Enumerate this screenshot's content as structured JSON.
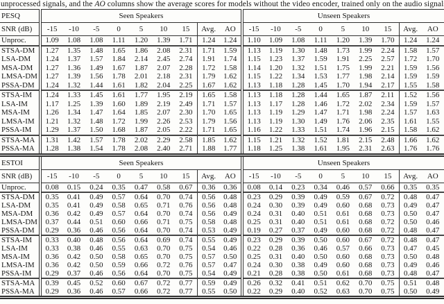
{
  "caption": {
    "prefix": "unprocessed signals, and the ",
    "italic": "AO",
    "suffix": " columns show the average scores for models without the video encoder, trained only on the audio signals."
  },
  "note": "cell values ending in * are rendered bold (best scores)",
  "groups": {
    "seen": "Seen Speakers",
    "unseen": "Unseen Speakers"
  },
  "columns": {
    "snr_label": "SNR (dB)",
    "snr_values": [
      "-15",
      "-10",
      "-5",
      "0",
      "5",
      "10",
      "15"
    ],
    "avg": "Avg.",
    "ao": "AO"
  },
  "tables": [
    {
      "metric": "PESQ",
      "rows": [
        {
          "label": "Unproc.",
          "baseline": true,
          "seen": [
            "1.09",
            "1.08",
            "1.08",
            "1.11",
            "1.20",
            "1.39",
            "1.71",
            "1.24",
            "1.24"
          ],
          "unseen": [
            "1.10",
            "1.09",
            "1.08",
            "1.11",
            "1.20",
            "1.39",
            "1.70",
            "1.24",
            "1.24"
          ]
        },
        {
          "label": "STSA-DM",
          "seen": [
            "1.27*",
            "1.35",
            "1.48",
            "1.65",
            "1.86",
            "2.08",
            "2.31",
            "1.71",
            "1.59"
          ],
          "unseen": [
            "1.13",
            "1.19",
            "1.30",
            "1.48",
            "1.73",
            "1.99",
            "2.24",
            "1.58",
            "1.57"
          ]
        },
        {
          "label": "LSA-DM",
          "seen": [
            "1.24",
            "1.37",
            "1.57*",
            "1.84*",
            "2.14*",
            "2.45*",
            "2.74*",
            "1.91*",
            "1.74*"
          ],
          "unseen": [
            "1.15*",
            "1.23*",
            "1.37*",
            "1.59*",
            "1.91*",
            "2.25*",
            "2.57*",
            "1.72*",
            "1.70*"
          ]
        },
        {
          "label": "MSA-DM",
          "seen": [
            "1.27*",
            "1.36",
            "1.49",
            "1.67",
            "1.87",
            "2.07",
            "2.28",
            "1.72",
            "1.58"
          ],
          "unseen": [
            "1.14",
            "1.20",
            "1.32",
            "1.51",
            "1.75",
            "1.99",
            "2.21",
            "1.59",
            "1.56"
          ]
        },
        {
          "label": "LMSA-DM",
          "seen": [
            "1.27*",
            "1.39*",
            "1.56",
            "1.78",
            "2.01",
            "2.18",
            "2.31",
            "1.79",
            "1.62"
          ],
          "unseen": [
            "1.15*",
            "1.22",
            "1.34",
            "1.53",
            "1.77",
            "1.98",
            "2.14",
            "1.59",
            "1.59"
          ]
        },
        {
          "label": "PSSA-DM",
          "seen": [
            "1.24",
            "1.32",
            "1.44",
            "1.61",
            "1.82",
            "2.04",
            "2.25",
            "1.67",
            "1.62"
          ],
          "unseen": [
            "1.13",
            "1.18",
            "1.28",
            "1.45",
            "1.70",
            "1.94",
            "2.17",
            "1.55",
            "1.58"
          ]
        },
        {
          "label": "STSA-IM",
          "sec_break": true,
          "seen": [
            "1.24",
            "1.33",
            "1.45",
            "1.61",
            "1.77",
            "1.95",
            "2.19",
            "1.65",
            "1.58"
          ],
          "unseen": [
            "1.13",
            "1.18",
            "1.28",
            "1.44",
            "1.65",
            "1.87",
            "2.11",
            "1.52",
            "1.56"
          ]
        },
        {
          "label": "LSA-IM",
          "seen": [
            "1.17",
            "1.25",
            "1.39",
            "1.60",
            "1.89",
            "2.19",
            "2.49",
            "1.71",
            "1.57"
          ],
          "unseen": [
            "1.13",
            "1.17",
            "1.28",
            "1.46",
            "1.72",
            "2.02",
            "2.34",
            "1.59",
            "1.57"
          ]
        },
        {
          "label": "MSA-IM",
          "seen": [
            "1.26",
            "1.34",
            "1.47",
            "1.64",
            "1.85",
            "2.07",
            "2.30",
            "1.70",
            "1.65*"
          ],
          "unseen": [
            "1.13",
            "1.19",
            "1.29",
            "1.47",
            "1.71",
            "1.98",
            "2.24",
            "1.57",
            "1.63*"
          ]
        },
        {
          "label": "LMSA-IM",
          "seen": [
            "1.21",
            "1.32",
            "1.48",
            "1.72*",
            "1.99*",
            "2.26*",
            "2.53*",
            "1.79*",
            "1.56"
          ],
          "unseen": [
            "1.13",
            "1.19",
            "1.30",
            "1.49",
            "1.76*",
            "2.06*",
            "2.35*",
            "1.61*",
            "1.55"
          ]
        },
        {
          "label": "PSSA-IM",
          "seen": [
            "1.29*",
            "1.37*",
            "1.50*",
            "1.68",
            "1.87",
            "2.05",
            "2.22",
            "1.71",
            "1.65*"
          ],
          "unseen": [
            "1.16*",
            "1.22*",
            "1.33*",
            "1.51*",
            "1.74",
            "1.96",
            "2.15",
            "1.58",
            "1.62"
          ]
        },
        {
          "label": "STSA-MA",
          "sec_break": true,
          "seen": [
            "1.31*",
            "1.42*",
            "1.57*",
            "1.78*",
            "2.02",
            "2.29",
            "2.58",
            "1.85",
            "1.62"
          ],
          "unseen": [
            "1.15",
            "1.21",
            "1.32",
            "1.52",
            "1.81",
            "2.15",
            "2.48",
            "1.66",
            "1.62"
          ]
        },
        {
          "label": "PSSA-MA",
          "seen": [
            "1.28",
            "1.38",
            "1.54",
            "1.78*",
            "2.08*",
            "2.40*",
            "2.71*",
            "1.88*",
            "1.77*"
          ],
          "unseen": [
            "1.18*",
            "1.25*",
            "1.38*",
            "1.61*",
            "1.95*",
            "2.31*",
            "2.63*",
            "1.76*",
            "1.76*"
          ]
        }
      ]
    },
    {
      "metric": "ESTOI",
      "rows": [
        {
          "label": "Unproc.",
          "baseline": true,
          "seen": [
            "0.08",
            "0.15",
            "0.24",
            "0.35",
            "0.47",
            "0.58",
            "0.67",
            "0.36",
            "0.36"
          ],
          "unseen": [
            "0.08",
            "0.14",
            "0.23",
            "0.34",
            "0.46",
            "0.57",
            "0.66",
            "0.35",
            "0.35"
          ]
        },
        {
          "label": "STSA-DM",
          "seen": [
            "0.35",
            "0.41",
            "0.49",
            "0.57",
            "0.64",
            "0.70",
            "0.74",
            "0.56",
            "0.48"
          ],
          "unseen": [
            "0.23",
            "0.29",
            "0.39",
            "0.49",
            "0.59",
            "0.67",
            "0.72",
            "0.48",
            "0.47*"
          ]
        },
        {
          "label": "LSA-DM",
          "seen": [
            "0.35",
            "0.41",
            "0.49",
            "0.58",
            "0.65",
            "0.71*",
            "0.76*",
            "0.56",
            "0.48"
          ],
          "unseen": [
            "0.24",
            "0.30",
            "0.39",
            "0.49",
            "0.60",
            "0.68*",
            "0.73*",
            "0.49",
            "0.47*"
          ]
        },
        {
          "label": "MSA-DM",
          "seen": [
            "0.36",
            "0.42",
            "0.49",
            "0.57",
            "0.64",
            "0.70",
            "0.74",
            "0.56",
            "0.49*"
          ],
          "unseen": [
            "0.24",
            "0.31*",
            "0.40*",
            "0.51*",
            "0.61*",
            "0.68*",
            "0.73*",
            "0.50*",
            "0.47*"
          ]
        },
        {
          "label": "LMSA-DM",
          "seen": [
            "0.37*",
            "0.44*",
            "0.51*",
            "0.60*",
            "0.66*",
            "0.71*",
            "0.75",
            "0.58*",
            "0.48"
          ],
          "unseen": [
            "0.25*",
            "0.31*",
            "0.40*",
            "0.51*",
            "0.61*",
            "0.68*",
            "0.72",
            "0.50*",
            "0.46"
          ]
        },
        {
          "label": "PSSA-DM",
          "seen": [
            "0.29",
            "0.36",
            "0.46",
            "0.56",
            "0.64",
            "0.70",
            "0.74",
            "0.53",
            "0.49*"
          ],
          "unseen": [
            "0.19",
            "0.27",
            "0.37",
            "0.49",
            "0.60",
            "0.68*",
            "0.72",
            "0.48",
            "0.47*"
          ]
        },
        {
          "label": "STSA-IM",
          "sec_break": true,
          "seen": [
            "0.33",
            "0.40",
            "0.48",
            "0.56",
            "0.64",
            "0.69",
            "0.74",
            "0.55",
            "0.49"
          ],
          "unseen": [
            "0.23",
            "0.29",
            "0.39",
            "0.50*",
            "0.60",
            "0.67",
            "0.72",
            "0.48",
            "0.47"
          ]
        },
        {
          "label": "LSA-IM",
          "seen": [
            "0.33",
            "0.38",
            "0.46",
            "0.55",
            "0.63",
            "0.70",
            "0.75",
            "0.54",
            "0.46"
          ],
          "unseen": [
            "0.22",
            "0.28",
            "0.36",
            "0.46",
            "0.57",
            "0.66",
            "0.73*",
            "0.47",
            "0.45"
          ]
        },
        {
          "label": "MSA-IM",
          "seen": [
            "0.36*",
            "0.42*",
            "0.50*",
            "0.58",
            "0.65",
            "0.70",
            "0.75",
            "0.57*",
            "0.50*"
          ],
          "unseen": [
            "0.25*",
            "0.31*",
            "0.40*",
            "0.50*",
            "0.60",
            "0.68*",
            "0.73*",
            "0.50*",
            "0.48*"
          ]
        },
        {
          "label": "LMSA-IM",
          "seen": [
            "0.36*",
            "0.42*",
            "0.50*",
            "0.59*",
            "0.66*",
            "0.72*",
            "0.76*",
            "0.57*",
            "0.47"
          ],
          "unseen": [
            "0.24",
            "0.30",
            "0.38",
            "0.49",
            "0.60",
            "0.68*",
            "0.73*",
            "0.49",
            "0.46"
          ]
        },
        {
          "label": "PSSA-IM",
          "seen": [
            "0.29",
            "0.37",
            "0.46",
            "0.56",
            "0.64",
            "0.70",
            "0.75",
            "0.54",
            "0.49"
          ],
          "unseen": [
            "0.21",
            "0.28",
            "0.38",
            "0.50*",
            "0.61*",
            "0.68*",
            "0.73*",
            "0.48",
            "0.47"
          ]
        },
        {
          "label": "STSA-MA",
          "sec_break": true,
          "seen": [
            "0.39*",
            "0.45*",
            "0.52*",
            "0.60*",
            "0.67*",
            "0.72*",
            "0.77*",
            "0.59*",
            "0.49"
          ],
          "unseen": [
            "0.26*",
            "0.32*",
            "0.41*",
            "0.51",
            "0.62",
            "0.70*",
            "0.75*",
            "0.51*",
            "0.48"
          ]
        },
        {
          "label": "PSSA-MA",
          "seen": [
            "0.29",
            "0.36",
            "0.46",
            "0.57",
            "0.66",
            "0.72*",
            "0.77*",
            "0.55",
            "0.50*"
          ],
          "unseen": [
            "0.22",
            "0.29",
            "0.40",
            "0.52*",
            "0.63*",
            "0.70*",
            "0.75*",
            "0.50",
            "0.49*"
          ]
        }
      ]
    }
  ]
}
